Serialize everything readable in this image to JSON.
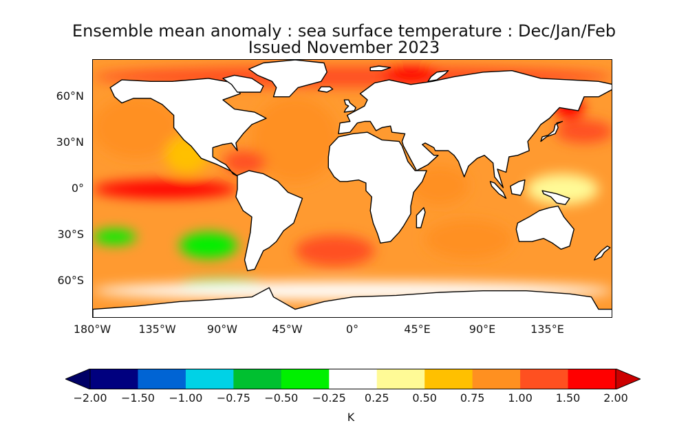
{
  "chart_data": {
    "type": "map",
    "title": "Ensemble mean anomaly : sea surface temperature : Dec/Jan/Feb",
    "subtitle": "Issued November 2023",
    "variable": "sea surface temperature anomaly",
    "season": "Dec/Jan/Feb",
    "lon_range": [
      -180,
      180
    ],
    "lat_range": [
      -90,
      90
    ],
    "lon_ticks": [
      {
        "value": -180,
        "label": "180°W"
      },
      {
        "value": -135,
        "label": "135°W"
      },
      {
        "value": -90,
        "label": "90°W"
      },
      {
        "value": -45,
        "label": "45°W"
      },
      {
        "value": 0,
        "label": "0°"
      },
      {
        "value": 45,
        "label": "45°E"
      },
      {
        "value": 90,
        "label": "90°E"
      },
      {
        "value": 135,
        "label": "135°E"
      }
    ],
    "lat_ticks": [
      {
        "value": 60,
        "label": "60°N"
      },
      {
        "value": 30,
        "label": "30°N"
      },
      {
        "value": 0,
        "label": "0°"
      },
      {
        "value": -30,
        "label": "30°S"
      },
      {
        "value": -60,
        "label": "60°S"
      }
    ],
    "colorbar": {
      "unit": "K",
      "extend": "both",
      "levels": [
        -2.0,
        -1.5,
        -1.0,
        -0.75,
        -0.5,
        -0.25,
        0.25,
        0.5,
        0.75,
        1.0,
        1.5,
        2.0
      ],
      "tick_labels": [
        "−2.00",
        "−1.50",
        "−1.00",
        "−0.75",
        "−0.50",
        "−0.25",
        "0.25",
        "0.50",
        "0.75",
        "1.00",
        "1.50",
        "2.00"
      ],
      "colors": [
        "#00007f",
        "#0064d4",
        "#00d2e6",
        "#00c030",
        "#00f000",
        "#ffffff",
        "#fffa96",
        "#ffc000",
        "#ff9020",
        "#ff5020",
        "#ff0000"
      ],
      "under_color": "#000066",
      "over_color": "#cc0000"
    },
    "anomaly_regions": [
      {
        "name": "equatorial Pacific (El Niño)",
        "lon": [
          -180,
          -80
        ],
        "lat": [
          -6,
          6
        ],
        "value": 1.75
      },
      {
        "name": "North Pacific",
        "lon": [
          -180,
          -120
        ],
        "lat": [
          20,
          60
        ],
        "value": 0.9
      },
      {
        "name": "eastern North Pacific",
        "lon": [
          -130,
          -100
        ],
        "lat": [
          10,
          35
        ],
        "value": 0.6
      },
      {
        "name": "North Atlantic",
        "lon": [
          -70,
          -10
        ],
        "lat": [
          5,
          60
        ],
        "value": 0.8
      },
      {
        "name": "Caribbean",
        "lon": [
          -90,
          -60
        ],
        "lat": [
          10,
          25
        ],
        "value": 1.2
      },
      {
        "name": "Arctic margin",
        "lon": [
          -180,
          180
        ],
        "lat": [
          66,
          80
        ],
        "value": 1.25
      },
      {
        "name": "Barents Sea",
        "lon": [
          20,
          60
        ],
        "lat": [
          68,
          80
        ],
        "value": 1.7
      },
      {
        "name": "western Indian Ocean",
        "lon": [
          40,
          80
        ],
        "lat": [
          -10,
          15
        ],
        "value": 0.8
      },
      {
        "name": "South Indian Ocean",
        "lon": [
          50,
          110
        ],
        "lat": [
          -45,
          -20
        ],
        "value": 0.9
      },
      {
        "name": "South Atlantic",
        "lon": [
          -40,
          15
        ],
        "lat": [
          -50,
          -30
        ],
        "value": 1.2
      },
      {
        "name": "Kuroshio extension",
        "lon": [
          140,
          180
        ],
        "lat": [
          30,
          45
        ],
        "value": 1.2
      },
      {
        "name": "Sea of Okhotsk",
        "lon": [
          140,
          160
        ],
        "lat": [
          45,
          60
        ],
        "value": 1.6
      },
      {
        "name": "western Pacific warm pool",
        "lon": [
          120,
          170
        ],
        "lat": [
          -10,
          10
        ],
        "value": 0.35
      },
      {
        "name": "subtropical South Pacific (cool)",
        "lon": [
          -180,
          -150
        ],
        "lat": [
          -36,
          -26
        ],
        "value": -0.4
      },
      {
        "name": "southeast Pacific (cool)",
        "lon": [
          -120,
          -80
        ],
        "lat": [
          -45,
          -28
        ],
        "value": -0.4
      },
      {
        "name": "Southern Ocean Pacific sector (cool)",
        "lon": [
          -120,
          -60
        ],
        "lat": [
          -66,
          -58
        ],
        "value": -0.5
      },
      {
        "name": "Southern Ocean (near neutral)",
        "lon": [
          -180,
          180
        ],
        "lat": [
          -72,
          -60
        ],
        "value": 0.1
      }
    ]
  }
}
